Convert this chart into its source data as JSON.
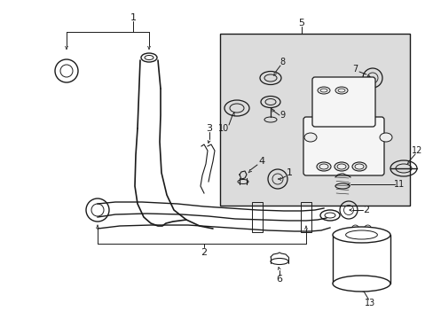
{
  "bg_color": "#ffffff",
  "line_color": "#1a1a1a",
  "shaded_box_color": "#dcdcdc",
  "fig_width": 4.89,
  "fig_height": 3.6,
  "dpi": 100
}
